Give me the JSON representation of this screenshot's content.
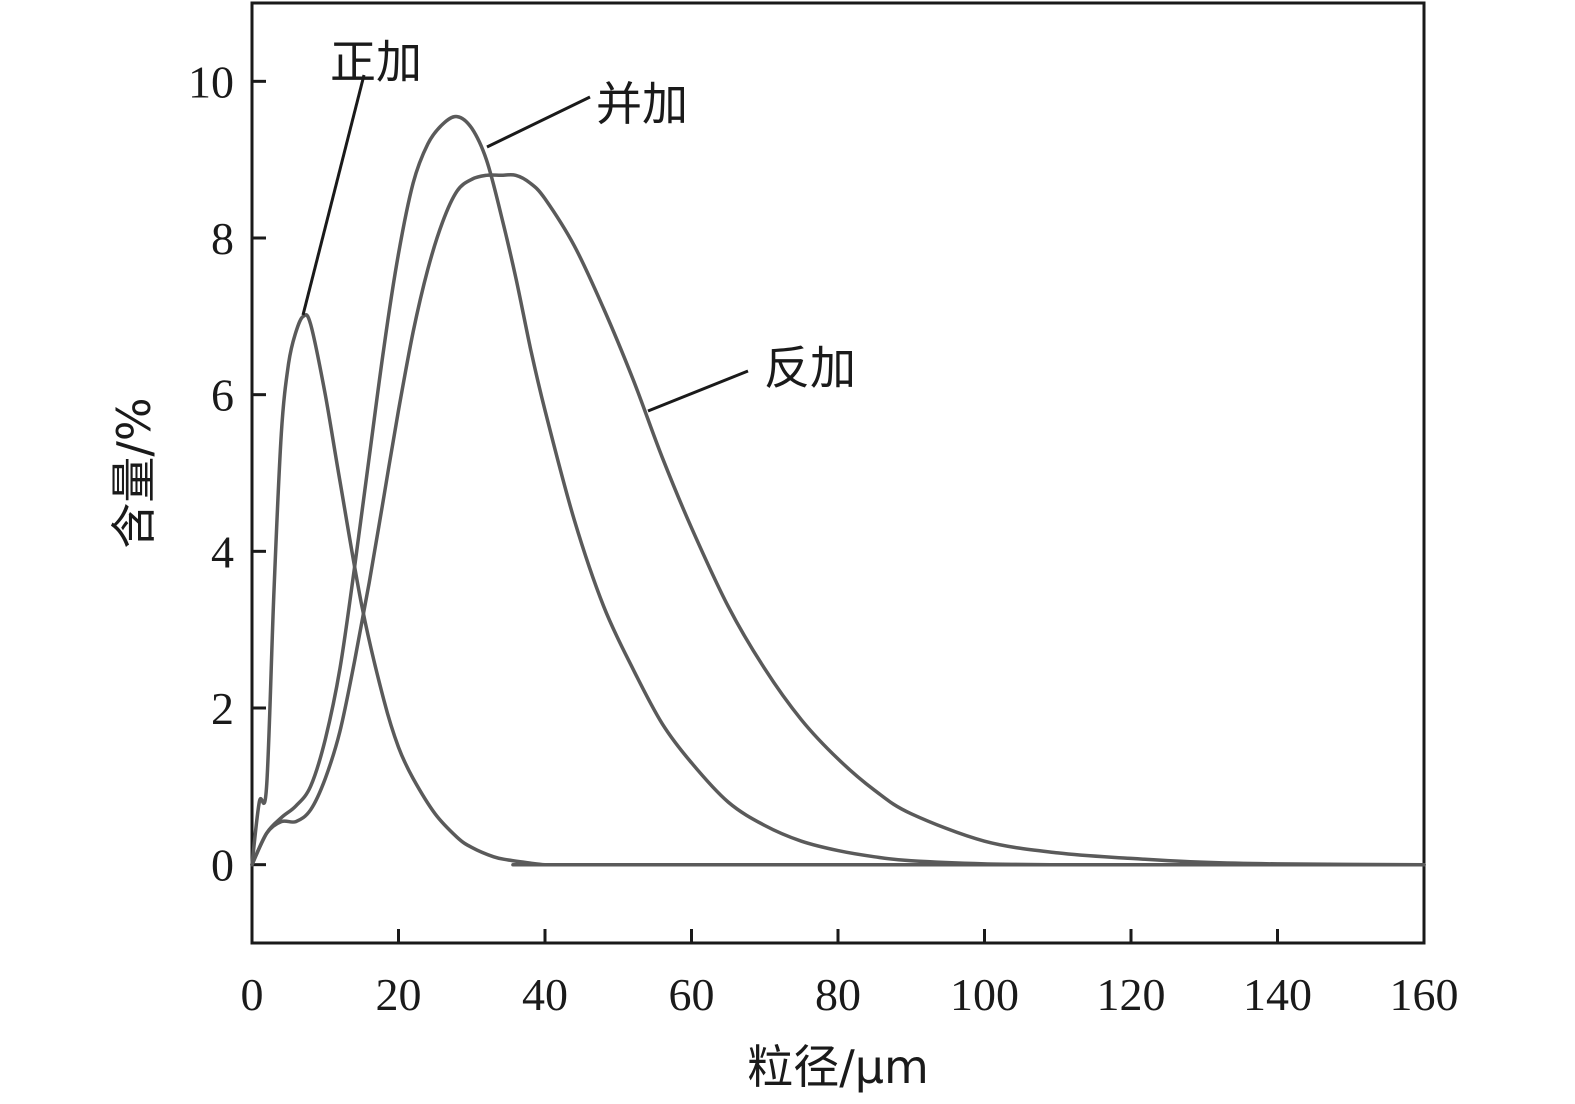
{
  "chart_data": {
    "type": "line",
    "title": "",
    "xlabel": "粒径/μm",
    "ylabel": "含量/%",
    "xlim": [
      0,
      160
    ],
    "ylim": [
      -1,
      11
    ],
    "xticks": [
      0,
      20,
      40,
      60,
      80,
      100,
      120,
      140,
      160
    ],
    "xtick_labels": [
      "0",
      "20",
      "40",
      "60",
      "80",
      "100",
      "120",
      "140",
      "160"
    ],
    "yticks": [
      0,
      2,
      4,
      6,
      8,
      10
    ],
    "ytick_labels": [
      "0",
      "2",
      "4",
      "6",
      "8",
      "10"
    ],
    "grid": false,
    "legend": "none",
    "line_color": "#5a5a5a",
    "series": [
      {
        "name": "正加",
        "x": [
          0,
          1,
          2,
          3,
          4,
          5,
          6,
          7,
          8,
          10,
          12,
          15,
          18,
          20,
          22,
          25,
          28,
          30,
          33,
          35,
          38,
          40,
          42,
          45,
          160
        ],
        "y": [
          0,
          0.8,
          1.0,
          3.5,
          5.5,
          6.4,
          6.8,
          7.0,
          6.9,
          6.0,
          4.9,
          3.3,
          2.1,
          1.5,
          1.1,
          0.65,
          0.35,
          0.22,
          0.1,
          0.06,
          0.02,
          0.0,
          0.0,
          0.0,
          0.0
        ]
      },
      {
        "name": "并加",
        "x": [
          0,
          2,
          4,
          6,
          8,
          10,
          12,
          14,
          16,
          18,
          20,
          22,
          24,
          26,
          28,
          30,
          32,
          34,
          36,
          38,
          40,
          44,
          48,
          52,
          56,
          60,
          65,
          70,
          75,
          80,
          85,
          90,
          100,
          110,
          120,
          160
        ],
        "y": [
          0,
          0.4,
          0.6,
          0.75,
          1.0,
          1.6,
          2.5,
          3.8,
          5.2,
          6.6,
          7.8,
          8.7,
          9.2,
          9.45,
          9.55,
          9.4,
          9.0,
          8.3,
          7.5,
          6.6,
          5.8,
          4.4,
          3.3,
          2.5,
          1.8,
          1.3,
          0.8,
          0.5,
          0.3,
          0.18,
          0.1,
          0.05,
          0.01,
          0.0,
          0.0,
          0.0
        ]
      },
      {
        "name": "反加",
        "x": [
          0,
          2,
          4,
          6,
          8,
          10,
          12,
          14,
          16,
          18,
          20,
          22,
          24,
          26,
          28,
          30,
          32,
          34,
          36,
          38,
          40,
          44,
          48,
          52,
          56,
          60,
          65,
          70,
          75,
          80,
          85,
          90,
          100,
          110,
          120,
          130,
          140,
          160
        ],
        "y": [
          0,
          0.4,
          0.55,
          0.55,
          0.7,
          1.1,
          1.7,
          2.6,
          3.6,
          4.7,
          5.8,
          6.8,
          7.6,
          8.2,
          8.6,
          8.75,
          8.8,
          8.8,
          8.8,
          8.7,
          8.5,
          7.9,
          7.1,
          6.2,
          5.2,
          4.3,
          3.3,
          2.5,
          1.85,
          1.35,
          0.95,
          0.65,
          0.3,
          0.15,
          0.08,
          0.03,
          0.01,
          0.0
        ]
      }
    ],
    "annotations": [
      {
        "text": "正加",
        "series": "正加"
      },
      {
        "text": "并加",
        "series": "并加"
      },
      {
        "text": "反加",
        "series": "反加"
      }
    ]
  }
}
